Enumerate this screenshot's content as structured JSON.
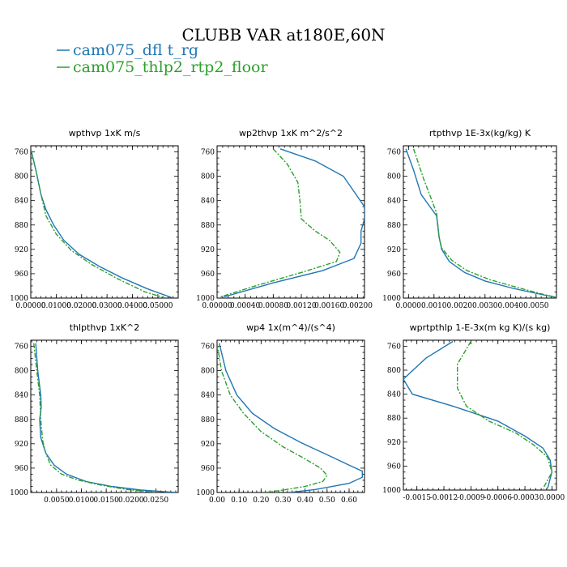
{
  "figure": {
    "title": "CLUBB VAR at180E,60N",
    "legend": [
      {
        "label": "cam075_dfl t_rg",
        "color": "#1f77b4",
        "dash": ""
      },
      {
        "label": "cam075_thlp2_rtp2_floor",
        "color": "#2ca02c",
        "dash": "6,2,2,2"
      }
    ]
  },
  "chart_data": [
    {
      "type": "line",
      "title": "wpthvp  1xK m/s",
      "xlim": [
        0,
        0.058
      ],
      "ylim": [
        1000,
        750
      ],
      "xticks": [
        0,
        0.01,
        0.02,
        0.03,
        0.04,
        0.05
      ],
      "xtick_labels": [
        "0.00000",
        "0.01000",
        "0.02000",
        "0.03000",
        "0.04000",
        "0.05000"
      ],
      "yticks": [
        760,
        800,
        840,
        880,
        920,
        960,
        1000
      ],
      "series": [
        {
          "name": "cam075_dflt_rg",
          "color": "#1f77b4",
          "x": [
            0,
            0.002,
            0.004,
            0.006,
            0.009,
            0.013,
            0.019,
            0.027,
            0.036,
            0.046,
            0.056
          ],
          "y": [
            755,
            790,
            830,
            855,
            880,
            905,
            928,
            948,
            967,
            985,
            1000
          ]
        },
        {
          "name": "cam075_thlp2_rtp2_floor",
          "color": "#2ca02c",
          "dash": "6,2,2,2",
          "x": [
            0,
            0.002,
            0.004,
            0.006,
            0.01,
            0.016,
            0.024,
            0.034,
            0.045,
            0.053
          ],
          "y": [
            755,
            790,
            830,
            865,
            895,
            922,
            945,
            968,
            990,
            1000
          ]
        }
      ]
    },
    {
      "type": "line",
      "title": "wp2thvp  1xK m^2/s^2",
      "xlim": [
        0,
        0.0021
      ],
      "ylim": [
        1000,
        750
      ],
      "xticks": [
        0,
        0.0004,
        0.0008,
        0.0012,
        0.0016,
        0.002
      ],
      "xtick_labels": [
        "0.00000",
        "0.00040",
        "0.00080",
        "0.00120",
        "0.00160",
        "0.00200"
      ],
      "yticks": [
        760,
        800,
        840,
        880,
        920,
        960,
        1000
      ],
      "series": [
        {
          "name": "cam075_dflt_rg",
          "color": "#1f77b4",
          "x": [
            0.0009,
            0.0014,
            0.0018,
            0.0021,
            0.0021,
            0.00205,
            0.00205,
            0.00195,
            0.0015,
            0.0008,
            0.0001
          ],
          "y": [
            755,
            775,
            800,
            850,
            870,
            890,
            910,
            935,
            955,
            975,
            998
          ]
        },
        {
          "name": "cam075_thlp2_rtp2_floor",
          "color": "#2ca02c",
          "dash": "6,2,2,2",
          "x": [
            0.0008,
            0.001,
            0.00115,
            0.00118,
            0.0012,
            0.0014,
            0.0016,
            0.00175,
            0.0017,
            0.0012,
            0.0006,
            5e-05
          ],
          "y": [
            755,
            780,
            810,
            840,
            870,
            890,
            905,
            925,
            940,
            958,
            978,
            998
          ]
        }
      ]
    },
    {
      "type": "line",
      "title": "rtpthvp  1E-3x(kg/kg) K",
      "xlim": [
        -0.0002,
        0.0058
      ],
      "ylim": [
        1000,
        750
      ],
      "xticks": [
        0,
        0.001,
        0.002,
        0.003,
        0.004,
        0.005
      ],
      "xtick_labels": [
        "0.0000",
        "0.0010",
        "0.0020",
        "0.0030",
        "0.0040",
        "0.0050"
      ],
      "yticks": [
        760,
        800,
        840,
        880,
        920,
        960,
        1000
      ],
      "series": [
        {
          "name": "cam075_dflt_rg",
          "color": "#1f77b4",
          "x": [
            -0.0001,
            0.0002,
            0.0005,
            0.0011,
            0.0012,
            0.0013,
            0.0016,
            0.0022,
            0.003,
            0.0041,
            0.0052,
            0.0058
          ],
          "y": [
            755,
            790,
            830,
            865,
            900,
            920,
            940,
            958,
            972,
            984,
            994,
            999
          ]
        },
        {
          "name": "cam075_thlp2_rtp2_floor",
          "color": "#2ca02c",
          "dash": "6,2,2,2",
          "x": [
            0.0002,
            0.0006,
            0.0011,
            0.0012,
            0.0013,
            0.0017,
            0.0023,
            0.0032,
            0.0043,
            0.0053,
            0.0058
          ],
          "y": [
            755,
            805,
            860,
            900,
            918,
            938,
            955,
            970,
            983,
            994,
            999
          ]
        }
      ]
    },
    {
      "type": "line",
      "title": "thlpthvp  1xK^2",
      "xlim": [
        -0.0002,
        0.0295
      ],
      "ylim": [
        1000,
        750
      ],
      "xticks": [
        0.005,
        0.01,
        0.015,
        0.02,
        0.025
      ],
      "xtick_labels": [
        "0.0050",
        "0.0100",
        "0.0150",
        "0.0200",
        "0.0250"
      ],
      "yticks": [
        760,
        800,
        840,
        880,
        920,
        960,
        1000
      ],
      "series": [
        {
          "name": "cam075_dflt_rg",
          "color": "#1f77b4",
          "x": [
            0.0008,
            0.0012,
            0.0018,
            0.0019,
            0.0016,
            0.0018,
            0.0028,
            0.0045,
            0.007,
            0.011,
            0.016,
            0.022,
            0.029
          ],
          "y": [
            755,
            800,
            840,
            860,
            880,
            910,
            935,
            955,
            970,
            982,
            990,
            996,
            1000
          ]
        },
        {
          "name": "cam075_thlp2_rtp2_floor",
          "color": "#2ca02c",
          "dash": "6,2,2,2",
          "x": [
            0.0004,
            0.001,
            0.0016,
            0.0018,
            0.0022,
            0.0028,
            0.0038,
            0.006,
            0.0095,
            0.014,
            0.019,
            0.025
          ],
          "y": [
            755,
            800,
            840,
            880,
            915,
            935,
            955,
            970,
            980,
            988,
            995,
            1000
          ]
        }
      ]
    },
    {
      "type": "line",
      "title": "wp4  1x(m^4)/(s^4)",
      "xlim": [
        0,
        0.67
      ],
      "ylim": [
        1000,
        750
      ],
      "xticks": [
        0,
        0.1,
        0.2,
        0.3,
        0.4,
        0.5,
        0.6
      ],
      "xtick_labels": [
        "0.00",
        "0.10",
        "0.20",
        "0.30",
        "0.40",
        "0.50",
        "0.60"
      ],
      "yticks": [
        760,
        800,
        840,
        880,
        920,
        960,
        1000
      ],
      "series": [
        {
          "name": "cam075_dflt_rg",
          "color": "#1f77b4",
          "x": [
            0.01,
            0.04,
            0.09,
            0.16,
            0.26,
            0.38,
            0.5,
            0.6,
            0.66,
            0.66,
            0.6,
            0.45,
            0.33
          ],
          "y": [
            755,
            800,
            840,
            870,
            895,
            918,
            938,
            955,
            965,
            975,
            985,
            995,
            1000
          ]
        },
        {
          "name": "cam075_thlp2_rtp2_floor",
          "color": "#2ca02c",
          "dash": "6,2,2,2",
          "x": [
            0,
            0.02,
            0.06,
            0.12,
            0.2,
            0.3,
            0.4,
            0.47,
            0.5,
            0.48,
            0.4,
            0.3,
            0.22
          ],
          "y": [
            755,
            800,
            840,
            870,
            900,
            925,
            945,
            960,
            972,
            982,
            990,
            996,
            1000
          ]
        }
      ]
    },
    {
      "type": "line",
      "title": "wprtpthlp  1-E-3x(m kg K)/(s kg)",
      "xlim": [
        -0.00165,
        5e-05
      ],
      "ylim": [
        1000,
        750
      ],
      "xticks": [
        -0.0015,
        -0.0012,
        -0.0009,
        -0.0006,
        -0.0003,
        0
      ],
      "xtick_labels": [
        "-0.0015",
        "-0.0012",
        "-0.0009",
        "-0.0006",
        "-0.0003",
        "0.0000"
      ],
      "yticks": [
        760,
        800,
        840,
        880,
        920,
        960,
        1000
      ],
      "series": [
        {
          "name": "cam075_dflt_rg",
          "color": "#1f77b4",
          "x": [
            -0.0011,
            -0.0014,
            -0.00165,
            -0.00155,
            -0.0011,
            -0.0006,
            -0.0003,
            -0.0001,
            -2e-05,
            0,
            -5e-05
          ],
          "y": [
            752,
            780,
            815,
            840,
            860,
            885,
            910,
            930,
            950,
            970,
            998
          ]
        },
        {
          "name": "cam075_thlp2_rtp2_floor",
          "color": "#2ca02c",
          "dash": "6,2,2,2",
          "x": [
            -0.0009,
            -0.00105,
            -0.00105,
            -0.00095,
            -0.0007,
            -0.0004,
            -0.0002,
            -5e-05,
            0,
            -0.0001
          ],
          "y": [
            752,
            790,
            830,
            860,
            885,
            905,
            925,
            945,
            970,
            998
          ]
        }
      ]
    }
  ]
}
